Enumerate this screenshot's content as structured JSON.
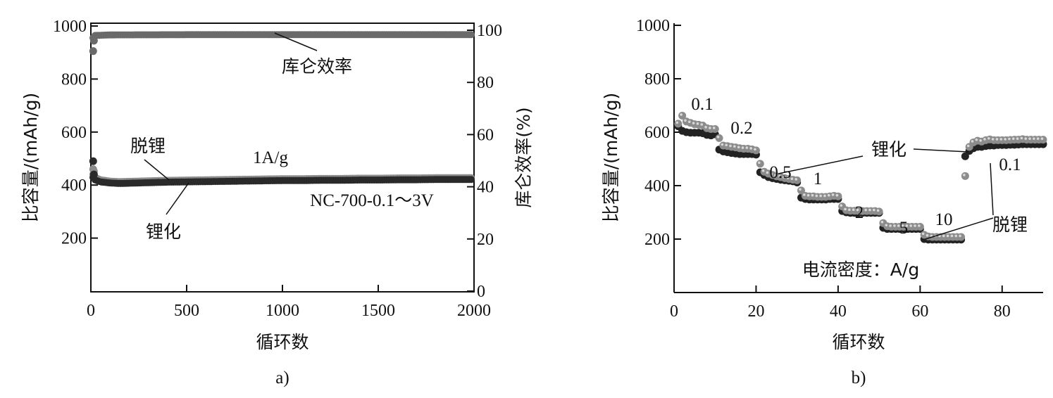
{
  "chart_data": [
    {
      "panel_label": "a)",
      "type": "scatter",
      "xlabel": "循环数",
      "ylabel": "比容量/(mAh/g)",
      "y2label": "库仑效率(%)",
      "xlim": [
        0,
        2000
      ],
      "ylim": [
        0,
        1000
      ],
      "y2lim": [
        0,
        103
      ],
      "xticks": [
        "0",
        "500",
        "1000",
        "1500",
        "2000"
      ],
      "yticks": [
        "200",
        "400",
        "600",
        "800",
        "1000"
      ],
      "y2ticks": [
        "0",
        "20",
        "40",
        "60",
        "80",
        "100"
      ],
      "grid": false,
      "annotations": {
        "ce": "库仑效率",
        "delith": "脱锂",
        "lith": "锂化",
        "rate": "1A/g",
        "sample": "NC-700-0.1～3V"
      },
      "series": [
        {
          "name": "锂化",
          "axis": "left",
          "color": "#8c8c8c",
          "points": [
            [
              1,
              460
            ],
            [
              5,
              452
            ],
            [
              10,
              442
            ],
            [
              20,
              430
            ],
            [
              50,
              420
            ],
            [
              100,
              415
            ],
            [
              150,
              413
            ],
            [
              200,
              414
            ],
            [
              300,
              416
            ],
            [
              400,
              418
            ],
            [
              500,
              419
            ],
            [
              600,
              420
            ],
            [
              700,
              421
            ],
            [
              800,
              422
            ],
            [
              900,
              423
            ],
            [
              1000,
              424
            ],
            [
              1100,
              424
            ],
            [
              1200,
              425
            ],
            [
              1300,
              425
            ],
            [
              1400,
              426
            ],
            [
              1500,
              426
            ],
            [
              1600,
              427
            ],
            [
              1700,
              427
            ],
            [
              1800,
              428
            ],
            [
              1900,
              428
            ],
            [
              2000,
              428
            ]
          ]
        },
        {
          "name": "脱锂",
          "axis": "left",
          "color": "#2a2a2a",
          "points": [
            [
              1,
              490
            ],
            [
              5,
              440
            ],
            [
              10,
              430
            ],
            [
              20,
              420
            ],
            [
              50,
              412
            ],
            [
              100,
              408
            ],
            [
              150,
              406
            ],
            [
              200,
              407
            ],
            [
              300,
              409
            ],
            [
              400,
              411
            ],
            [
              500,
              412
            ],
            [
              600,
              413
            ],
            [
              700,
              414
            ],
            [
              800,
              415
            ],
            [
              900,
              416
            ],
            [
              1000,
              417
            ],
            [
              1100,
              417
            ],
            [
              1200,
              418
            ],
            [
              1300,
              418
            ],
            [
              1400,
              419
            ],
            [
              1500,
              419
            ],
            [
              1600,
              420
            ],
            [
              1700,
              420
            ],
            [
              1800,
              421
            ],
            [
              1900,
              421
            ],
            [
              2000,
              421
            ]
          ]
        },
        {
          "name": "库仑效率",
          "axis": "right",
          "color": "#6a6a6a",
          "points": [
            [
              1,
              92
            ],
            [
              5,
              96
            ],
            [
              10,
              97
            ],
            [
              20,
              98
            ],
            [
              100,
              98.2
            ],
            [
              500,
              98.3
            ],
            [
              1000,
              98.3
            ],
            [
              1500,
              98.3
            ],
            [
              2000,
              98.3
            ]
          ]
        }
      ]
    },
    {
      "panel_label": "b)",
      "type": "scatter",
      "xlabel": "循环数",
      "ylabel": "比容量/(mAh/g)",
      "xlim": [
        0,
        90
      ],
      "ylim": [
        0,
        1000
      ],
      "xticks": [
        "0",
        "20",
        "40",
        "60",
        "80"
      ],
      "yticks": [
        "200",
        "400",
        "600",
        "800",
        "1000"
      ],
      "grid": false,
      "rate_title": "电流密度：A/g",
      "rate_labels": [
        "0.1",
        "0.2",
        "0.5",
        "1",
        "2",
        "5",
        "10",
        "0.1"
      ],
      "annotations": {
        "lith": "锂化",
        "delith": "脱锂"
      },
      "series": [
        {
          "name": "锂化",
          "color": "#8c8c8c",
          "points": [
            [
              1,
              632
            ],
            [
              2,
              662
            ],
            [
              3,
              640
            ],
            [
              4,
              635
            ],
            [
              5,
              630
            ],
            [
              6,
              628
            ],
            [
              7,
              625
            ],
            [
              8,
              615
            ],
            [
              9,
              612
            ],
            [
              10,
              612
            ],
            [
              11,
              578
            ],
            [
              12,
              550
            ],
            [
              13,
              548
            ],
            [
              14,
              545
            ],
            [
              15,
              543
            ],
            [
              16,
              540
            ],
            [
              17,
              538
            ],
            [
              18,
              538
            ],
            [
              19,
              536
            ],
            [
              20,
              532
            ],
            [
              21,
              482
            ],
            [
              22,
              452
            ],
            [
              23,
              445
            ],
            [
              24,
              440
            ],
            [
              25,
              435
            ],
            [
              26,
              432
            ],
            [
              27,
              428
            ],
            [
              28,
              425
            ],
            [
              29,
              422
            ],
            [
              30,
              420
            ],
            [
              31,
              382
            ],
            [
              32,
              362
            ],
            [
              33,
              360
            ],
            [
              34,
              360
            ],
            [
              35,
              358
            ],
            [
              36,
              358
            ],
            [
              37,
              358
            ],
            [
              38,
              360
            ],
            [
              39,
              362
            ],
            [
              40,
              360
            ],
            [
              41,
              322
            ],
            [
              42,
              308
            ],
            [
              43,
              306
            ],
            [
              44,
              306
            ],
            [
              45,
              305
            ],
            [
              46,
              305
            ],
            [
              47,
              305
            ],
            [
              48,
              305
            ],
            [
              49,
              305
            ],
            [
              50,
              303
            ],
            [
              51,
              260
            ],
            [
              52,
              248
            ],
            [
              53,
              246
            ],
            [
              54,
              246
            ],
            [
              55,
              246
            ],
            [
              56,
              246
            ],
            [
              57,
              246
            ],
            [
              58,
              246
            ],
            [
              59,
              246
            ],
            [
              60,
              246
            ],
            [
              61,
              216
            ],
            [
              62,
              210
            ],
            [
              63,
              208
            ],
            [
              64,
              208
            ],
            [
              65,
              208
            ],
            [
              66,
              208
            ],
            [
              67,
              208
            ],
            [
              68,
              208
            ],
            [
              69,
              208
            ],
            [
              70,
              208
            ],
            [
              71,
              436
            ],
            [
              72,
              545
            ],
            [
              73,
              562
            ],
            [
              74,
              568
            ],
            [
              75,
              565
            ],
            [
              76,
              570
            ],
            [
              77,
              573
            ],
            [
              78,
              570
            ],
            [
              79,
              570
            ],
            [
              80,
              570
            ],
            [
              81,
              570
            ],
            [
              82,
              571
            ],
            [
              83,
              572
            ],
            [
              84,
              572
            ],
            [
              85,
              574
            ],
            [
              86,
              572
            ],
            [
              87,
              572
            ],
            [
              88,
              572
            ],
            [
              89,
              572
            ],
            [
              90,
              572
            ]
          ]
        },
        {
          "name": "脱锂",
          "color": "#222222",
          "points": [
            [
              1,
              622
            ],
            [
              2,
              605
            ],
            [
              3,
              600
            ],
            [
              4,
              598
            ],
            [
              5,
              598
            ],
            [
              6,
              598
            ],
            [
              7,
              596
            ],
            [
              8,
              590
            ],
            [
              9,
              588
            ],
            [
              10,
              592
            ],
            [
              11,
              535
            ],
            [
              12,
              528
            ],
            [
              13,
              525
            ],
            [
              14,
              522
            ],
            [
              15,
              520
            ],
            [
              16,
              518
            ],
            [
              17,
              518
            ],
            [
              18,
              518
            ],
            [
              19,
              518
            ],
            [
              20,
              516
            ],
            [
              21,
              450
            ],
            [
              22,
              440
            ],
            [
              23,
              432
            ],
            [
              24,
              428
            ],
            [
              25,
              425
            ],
            [
              26,
              422
            ],
            [
              27,
              420
            ],
            [
              28,
              418
            ],
            [
              29,
              416
            ],
            [
              30,
              412
            ],
            [
              31,
              355
            ],
            [
              32,
              350
            ],
            [
              33,
              348
            ],
            [
              34,
              348
            ],
            [
              35,
              348
            ],
            [
              36,
              348
            ],
            [
              37,
              348
            ],
            [
              38,
              350
            ],
            [
              39,
              350
            ],
            [
              40,
              350
            ],
            [
              41,
              305
            ],
            [
              42,
              300
            ],
            [
              43,
              298
            ],
            [
              44,
              298
            ],
            [
              45,
              298
            ],
            [
              46,
              298
            ],
            [
              47,
              298
            ],
            [
              48,
              298
            ],
            [
              49,
              298
            ],
            [
              50,
              298
            ],
            [
              51,
              242
            ],
            [
              52,
              238
            ],
            [
              53,
              238
            ],
            [
              54,
              238
            ],
            [
              55,
              238
            ],
            [
              56,
              238
            ],
            [
              57,
              238
            ],
            [
              58,
              238
            ],
            [
              59,
              238
            ],
            [
              60,
              238
            ],
            [
              61,
              200
            ],
            [
              62,
              198
            ],
            [
              63,
              198
            ],
            [
              64,
              198
            ],
            [
              65,
              198
            ],
            [
              66,
              198
            ],
            [
              67,
              198
            ],
            [
              68,
              198
            ],
            [
              69,
              198
            ],
            [
              70,
              198
            ],
            [
              71,
              510
            ],
            [
              72,
              530
            ],
            [
              73,
              540
            ],
            [
              74,
              545
            ],
            [
              75,
              545
            ],
            [
              76,
              548
            ],
            [
              77,
              550
            ],
            [
              78,
              550
            ],
            [
              79,
              552
            ],
            [
              80,
              552
            ],
            [
              81,
              552
            ],
            [
              82,
              553
            ],
            [
              83,
              553
            ],
            [
              84,
              554
            ],
            [
              85,
              555
            ],
            [
              86,
              555
            ],
            [
              87,
              555
            ],
            [
              88,
              555
            ],
            [
              89,
              555
            ],
            [
              90,
              555
            ]
          ]
        }
      ]
    }
  ]
}
